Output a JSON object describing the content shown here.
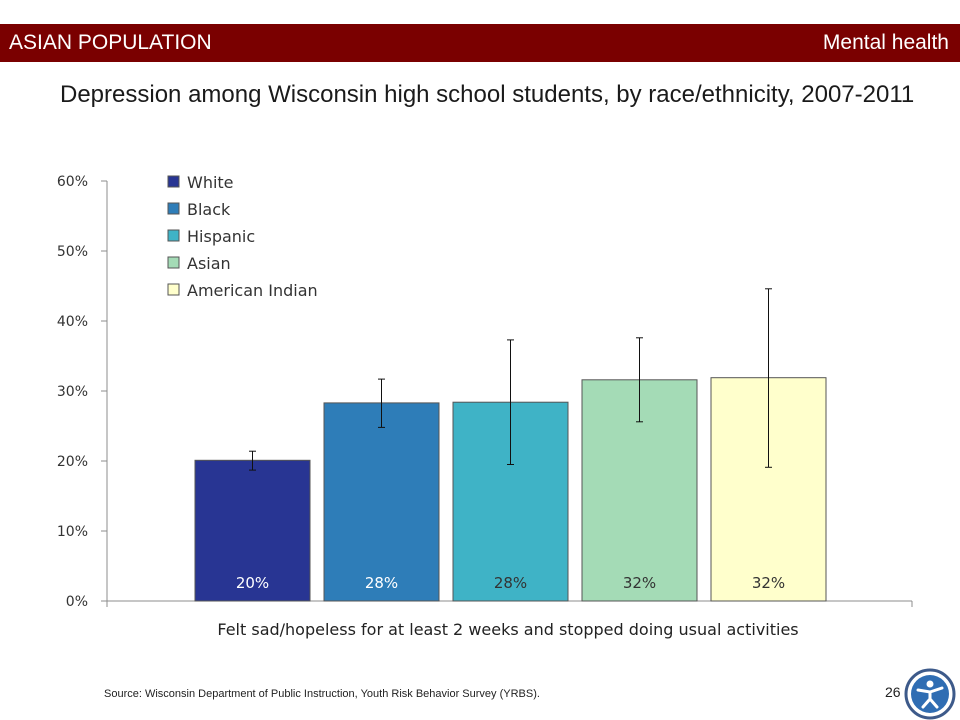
{
  "header": {
    "left_label": "ASIAN POPULATION",
    "right_label": "Mental health",
    "color": "#7a0000"
  },
  "chart_data": {
    "type": "bar",
    "title": "Depression among Wisconsin high school students, by race/ethnicity, 2007-2011",
    "xlabel": "Felt sad/hopeless for at least 2 weeks and stopped doing usual activities",
    "ylabel": "",
    "ylim": [
      0,
      60
    ],
    "yticks": [
      "0%",
      "10%",
      "20%",
      "30%",
      "40%",
      "50%",
      "60%"
    ],
    "legend_position": "top-left",
    "grid": false,
    "series": [
      {
        "name": "White",
        "value": 20.1,
        "label": "20%",
        "error_low": 18.7,
        "error_high": 21.4,
        "color": "#283593",
        "label_color": "#ffffff"
      },
      {
        "name": "Black",
        "value": 28.3,
        "label": "28%",
        "error_low": 24.8,
        "error_high": 31.7,
        "color": "#2e7db8",
        "label_color": "#ffffff"
      },
      {
        "name": "Hispanic",
        "value": 28.4,
        "label": "28%",
        "error_low": 19.5,
        "error_high": 37.3,
        "color": "#3fb3c6",
        "label_color": "#333333"
      },
      {
        "name": "Asian",
        "value": 31.6,
        "label": "32%",
        "error_low": 25.6,
        "error_high": 37.6,
        "color": "#a4dbb6",
        "label_color": "#333333"
      },
      {
        "name": "American Indian",
        "value": 31.9,
        "label": "32%",
        "error_low": 19.1,
        "error_high": 44.6,
        "color": "#ffffcc",
        "label_color": "#333333"
      }
    ]
  },
  "footer": {
    "source": "Source: Wisconsin Department of Public Instruction, Youth Risk Behavior Survey (YRBS).",
    "page_number": "26"
  }
}
